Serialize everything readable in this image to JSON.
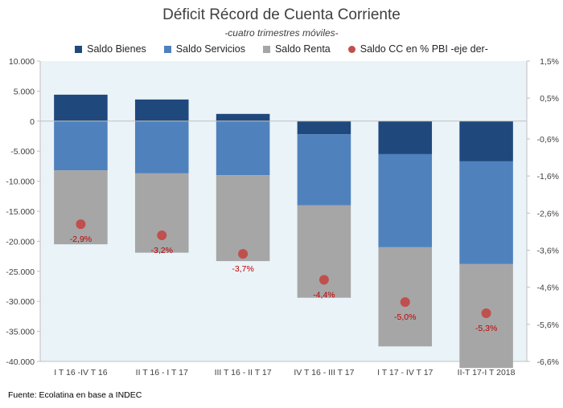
{
  "chart_data": {
    "type": "bar",
    "stacked": true,
    "title": "Déficit Récord de Cuenta Corriente",
    "subtitle": "-cuatro trimestres móviles-",
    "categories": [
      "I T 16  -IV T 16",
      "II T 16 - I T 17",
      "III T 16 - II T 17",
      "IV T 16 - III T 17",
      "I T 17 - IV T 17",
      "II-T 17-I T 2018"
    ],
    "series": [
      {
        "name": "Saldo Bienes",
        "color": "#1f497d",
        "values": [
          4400,
          3600,
          1200,
          -2200,
          -5500,
          -6700
        ]
      },
      {
        "name": "Saldo Servicios",
        "color": "#4f81bd",
        "values": [
          -8200,
          -8700,
          -9000,
          -11800,
          -15500,
          -17100
        ]
      },
      {
        "name": "Saldo Renta",
        "color": "#a6a6a6",
        "values": [
          -12300,
          -13200,
          -14300,
          -15400,
          -16500,
          -17300
        ]
      }
    ],
    "line_series": {
      "name": "Saldo CC en % PBI -eje der-",
      "color": "#c0504d",
      "axis": "right",
      "values": [
        -2.9,
        -3.2,
        -3.7,
        -4.4,
        -5.0,
        -5.3
      ],
      "labels": [
        "-2,9%",
        "-3,2%",
        "-3,7%",
        "-4,4%",
        "-5,0%",
        "-5,3%"
      ]
    },
    "ylim": [
      -40000,
      10000
    ],
    "yticks": [
      10000,
      5000,
      0,
      -5000,
      -10000,
      -15000,
      -20000,
      -25000,
      -30000,
      -35000,
      -40000
    ],
    "ytick_labels": [
      "10.000",
      "5.000",
      "0",
      "-5.000",
      "-10.000",
      "-15.000",
      "-20.000",
      "-25.000",
      "-30.000",
      "-35.000",
      "-40.000"
    ],
    "y2lim": [
      -6.6,
      1.5
    ],
    "y2ticks": [
      1.5,
      0.5,
      -0.6,
      -1.6,
      -2.6,
      -3.6,
      -4.6,
      -5.6,
      -6.6
    ],
    "y2tick_labels": [
      "1,5%",
      "0,5%",
      "-0,6%",
      "-1,6%",
      "-2,6%",
      "-3,6%",
      "-4,6%",
      "-5,6%",
      "-6,6%"
    ],
    "grid": false,
    "legend_position": "top",
    "plot_background": "#eaf3f8"
  },
  "source_note": "Fuente: Ecolatina en base a INDEC"
}
